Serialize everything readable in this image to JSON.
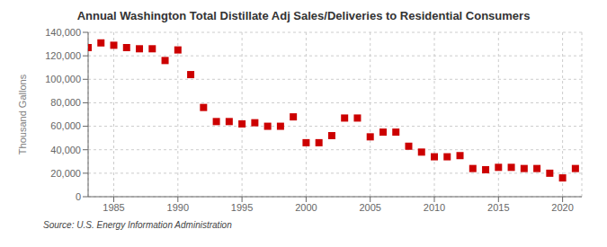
{
  "chart_data": {
    "type": "scatter",
    "title": "Annual Washington Total Distillate Adj Sales/Deliveries to Residential Consumers",
    "ylabel": "Thousand Gallons",
    "annotation": "Source: U.S. Energy Information Administration",
    "color": "#cc0000",
    "marker": "square",
    "grid": true,
    "xlim": [
      1983.0,
      2021.5
    ],
    "ylim": [
      0,
      140000
    ],
    "xticks": [
      1985,
      1990,
      1995,
      2000,
      2005,
      2010,
      2015,
      2020
    ],
    "yticks": [
      0,
      {
        "value": 20000,
        "label": "20,000"
      },
      {
        "value": 40000,
        "label": "40,000"
      },
      {
        "value": 60000,
        "label": "60,000"
      },
      {
        "value": 80000,
        "label": "80,000"
      },
      {
        "value": 100000,
        "label": "100,000"
      },
      {
        "value": 120000,
        "label": "120,000"
      },
      {
        "value": 140000,
        "label": "140,000"
      }
    ],
    "x": [
      1983,
      1984,
      1985,
      1986,
      1987,
      1988,
      1989,
      1990,
      1991,
      1992,
      1993,
      1994,
      1995,
      1996,
      1997,
      1998,
      1999,
      2000,
      2001,
      2002,
      2003,
      2004,
      2005,
      2006,
      2007,
      2008,
      2009,
      2010,
      2011,
      2012,
      2013,
      2014,
      2015,
      2016,
      2017,
      2018,
      2019,
      2020,
      2021
    ],
    "values": [
      127000,
      131000,
      129000,
      127000,
      126000,
      126000,
      116000,
      125000,
      104000,
      76000,
      64000,
      64000,
      62000,
      63000,
      60000,
      60000,
      68000,
      46000,
      46000,
      52000,
      67000,
      67000,
      51000,
      55000,
      55000,
      43000,
      38000,
      34000,
      34000,
      35000,
      24000,
      23000,
      25000,
      25000,
      24000,
      24000,
      20000,
      16000,
      24000
    ]
  }
}
